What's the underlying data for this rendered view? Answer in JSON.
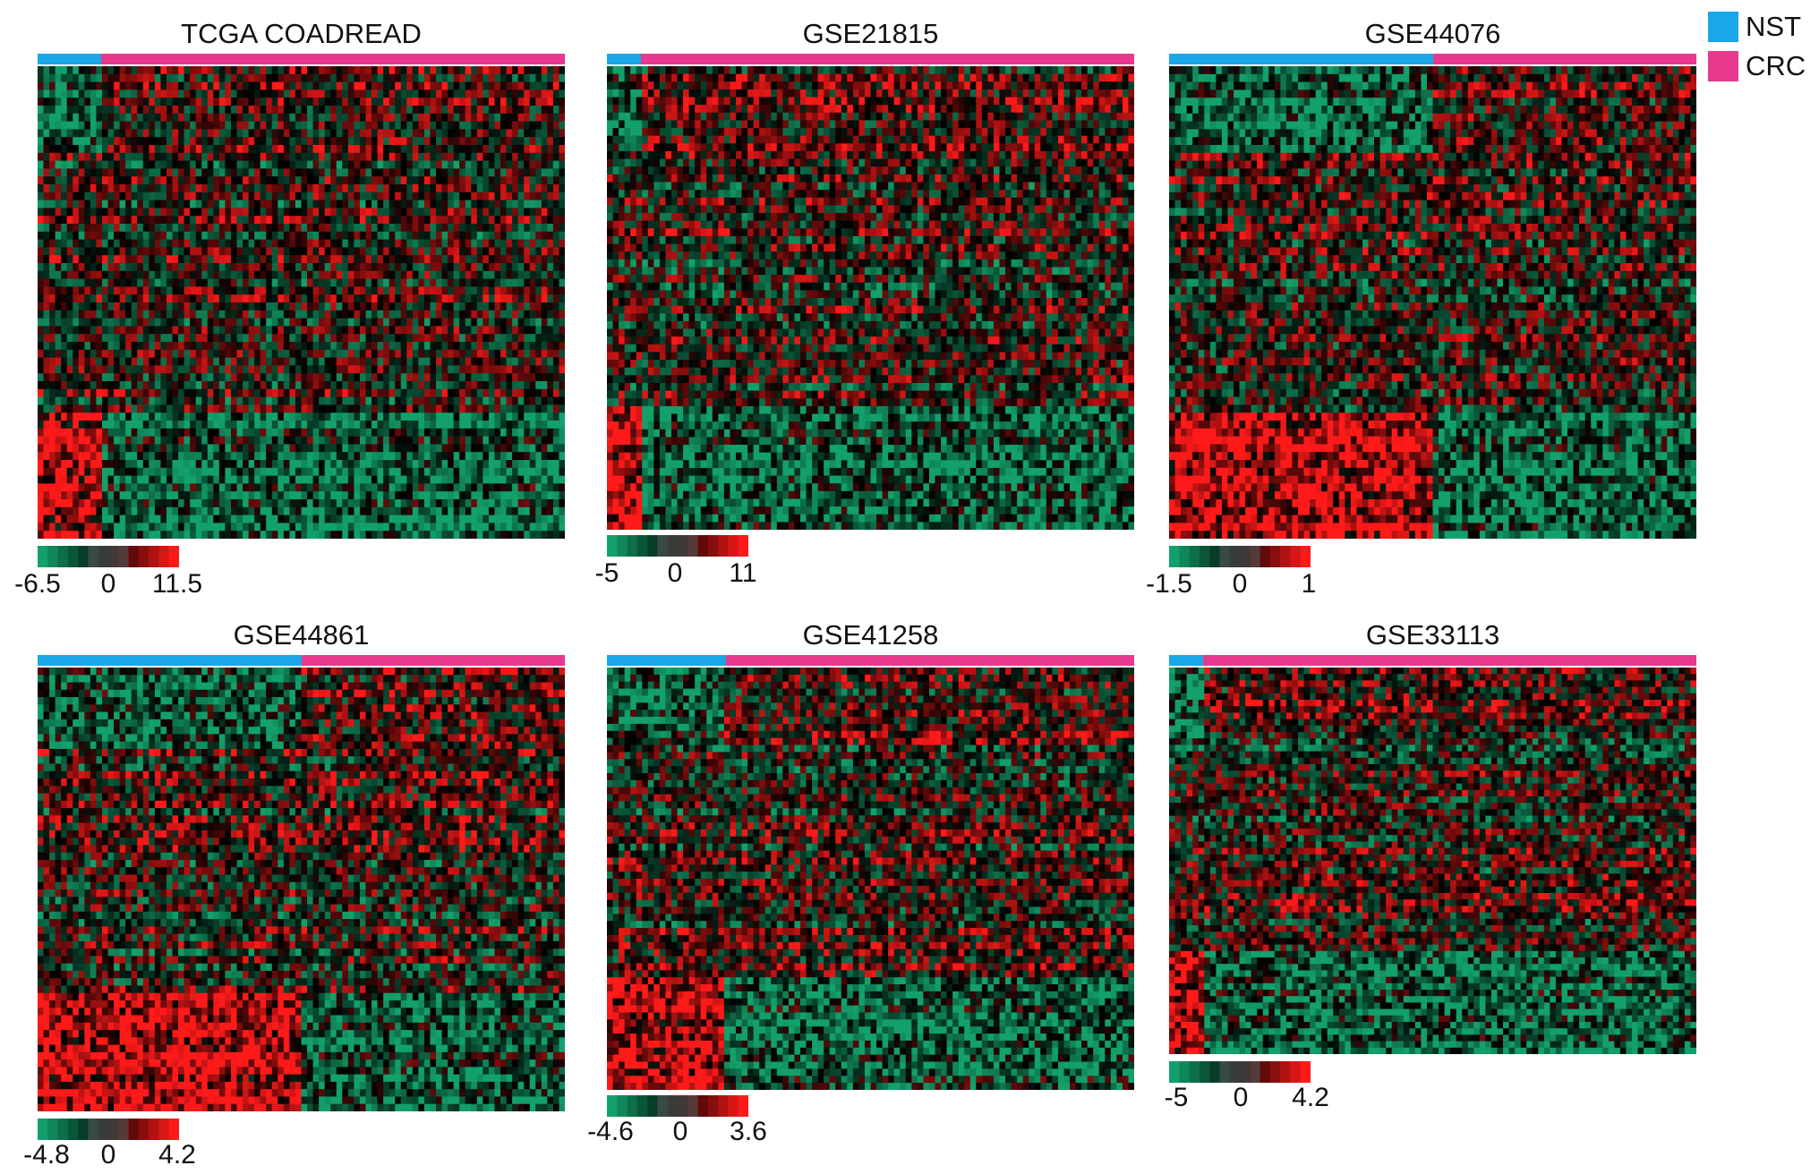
{
  "figure": {
    "colors": {
      "nst": "#1aa7e8",
      "crc": "#e8398f",
      "low": "#13a06a",
      "mid": "#000000",
      "high": "#ff1a1a"
    },
    "legend": [
      {
        "label": "NST",
        "color": "#1aa7e8"
      },
      {
        "label": "CRC",
        "color": "#e8398f"
      }
    ]
  },
  "chart_data": [
    {
      "type": "heatmap",
      "title": "TCGA COADREAD",
      "group_split": 0.12,
      "groups": [
        "NST",
        "CRC"
      ],
      "scale": {
        "min": "-6.5",
        "mid": "0",
        "max": "11.5"
      }
    },
    {
      "type": "heatmap",
      "title": "GSE21815",
      "group_split": 0.065,
      "groups": [
        "NST",
        "CRC"
      ],
      "scale": {
        "min": "-5",
        "mid": "0",
        "max": "11"
      }
    },
    {
      "type": "heatmap",
      "title": "GSE44076",
      "group_split": 0.5,
      "groups": [
        "NST",
        "CRC"
      ],
      "scale": {
        "min": "-1.5",
        "mid": "0",
        "max": "1"
      }
    },
    {
      "type": "heatmap",
      "title": "GSE44861",
      "group_split": 0.5,
      "groups": [
        "NST",
        "CRC"
      ],
      "scale": {
        "min": "-4.8",
        "mid": "0",
        "max": "4.2"
      }
    },
    {
      "type": "heatmap",
      "title": "GSE41258",
      "group_split": 0.225,
      "groups": [
        "NST",
        "CRC"
      ],
      "scale": {
        "min": "-4.6",
        "mid": "0",
        "max": "3.6"
      }
    },
    {
      "type": "heatmap",
      "title": "GSE33113",
      "group_split": 0.065,
      "groups": [
        "NST",
        "CRC"
      ],
      "scale": {
        "min": "-5",
        "mid": "0",
        "max": "4.2"
      }
    }
  ]
}
